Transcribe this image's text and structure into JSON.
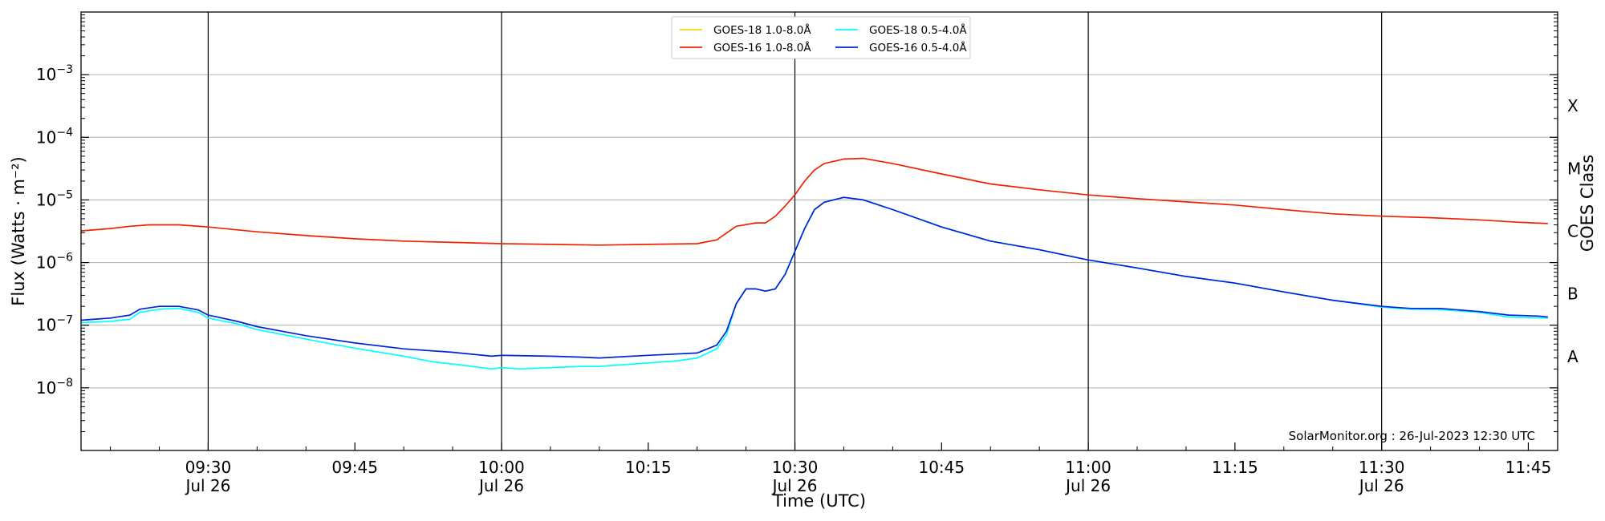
{
  "chart_data": {
    "type": "line",
    "xlabel": "Time (UTC)",
    "ylabel": "Flux (Watts · m⁻²)",
    "right_label": "GOES Class",
    "credit": "SolarMonitor.org : 26-Jul-2023 12:30 UTC",
    "y_scale": "log",
    "ylim": [
      1e-09,
      0.01
    ],
    "xlim": [
      "09:17",
      "11:48"
    ],
    "grid": "horizontal at decades 1e-8 to 1e-3",
    "legend_position": "top-center",
    "x_ticks": [
      {
        "time": "09:30",
        "label": "09:30",
        "date": "Jul 26"
      },
      {
        "time": "09:45",
        "label": "09:45",
        "date": ""
      },
      {
        "time": "10:00",
        "label": "10:00",
        "date": "Jul 26"
      },
      {
        "time": "10:15",
        "label": "10:15",
        "date": ""
      },
      {
        "time": "10:30",
        "label": "10:30",
        "date": "Jul 26"
      },
      {
        "time": "10:45",
        "label": "10:45",
        "date": ""
      },
      {
        "time": "11:00",
        "label": "11:00",
        "date": "Jul 26"
      },
      {
        "time": "11:15",
        "label": "11:15",
        "date": ""
      },
      {
        "time": "11:30",
        "label": "11:30",
        "date": "Jul 26"
      },
      {
        "time": "11:45",
        "label": "11:45",
        "date": ""
      }
    ],
    "vertical_lines": [
      "09:30",
      "10:00",
      "10:30",
      "11:00",
      "11:30"
    ],
    "y_ticks": [
      {
        "value": 1e-08,
        "exp": "-8"
      },
      {
        "value": 1e-07,
        "exp": "-7"
      },
      {
        "value": 1e-06,
        "exp": "-6"
      },
      {
        "value": 1e-05,
        "exp": "-5"
      },
      {
        "value": 0.0001,
        "exp": "-4"
      },
      {
        "value": 0.001,
        "exp": "-3"
      }
    ],
    "goes_classes": [
      {
        "label": "A",
        "value": 3.16e-08
      },
      {
        "label": "B",
        "value": 3.16e-07
      },
      {
        "label": "C",
        "value": 3.16e-06
      },
      {
        "label": "M",
        "value": 3.16e-05
      },
      {
        "label": "X",
        "value": 0.000316
      }
    ],
    "series": [
      {
        "name": "GOES-18 1.0-8.0Å",
        "color": "#ffd700",
        "points": []
      },
      {
        "name": "GOES-18 0.5-4.0Å",
        "color": "#00ffff",
        "points": [
          [
            "09:17",
            1.1e-07
          ],
          [
            "09:20",
            1.15e-07
          ],
          [
            "09:22",
            1.25e-07
          ],
          [
            "09:23",
            1.6e-07
          ],
          [
            "09:25",
            1.8e-07
          ],
          [
            "09:27",
            1.85e-07
          ],
          [
            "09:29",
            1.6e-07
          ],
          [
            "09:30",
            1.3e-07
          ],
          [
            "09:33",
            1.05e-07
          ],
          [
            "09:35",
            8.5e-08
          ],
          [
            "09:40",
            6e-08
          ],
          [
            "09:45",
            4.3e-08
          ],
          [
            "09:50",
            3.2e-08
          ],
          [
            "09:53",
            2.6e-08
          ],
          [
            "09:56",
            2.3e-08
          ],
          [
            "09:59",
            2e-08
          ],
          [
            "10:00",
            2.1e-08
          ],
          [
            "10:02",
            2e-08
          ],
          [
            "10:05",
            2.1e-08
          ],
          [
            "10:08",
            2.2e-08
          ],
          [
            "10:10",
            2.2e-08
          ],
          [
            "10:15",
            2.5e-08
          ],
          [
            "10:18",
            2.7e-08
          ],
          [
            "10:20",
            3e-08
          ],
          [
            "10:22",
            4.2e-08
          ],
          [
            "10:23",
            7e-08
          ],
          [
            "10:24",
            2.2e-07
          ],
          [
            "10:25",
            3.8e-07
          ],
          [
            "10:26",
            3.8e-07
          ],
          [
            "10:27",
            3.5e-07
          ],
          [
            "10:28",
            3.8e-07
          ],
          [
            "10:29",
            6.5e-07
          ],
          [
            "10:30",
            1.5e-06
          ],
          [
            "10:31",
            3.5e-06
          ],
          [
            "10:32",
            7e-06
          ],
          [
            "10:33",
            9.2e-06
          ],
          [
            "10:35",
            1.1e-05
          ],
          [
            "10:37",
            1e-05
          ],
          [
            "10:40",
            7e-06
          ],
          [
            "10:45",
            3.7e-06
          ],
          [
            "10:50",
            2.2e-06
          ],
          [
            "10:55",
            1.6e-06
          ],
          [
            "11:00",
            1.1e-06
          ],
          [
            "11:05",
            8.2e-07
          ],
          [
            "11:10",
            6e-07
          ],
          [
            "11:15",
            4.7e-07
          ],
          [
            "11:20",
            3.4e-07
          ],
          [
            "11:25",
            2.5e-07
          ],
          [
            "11:30",
            1.95e-07
          ],
          [
            "11:33",
            1.8e-07
          ],
          [
            "11:36",
            1.78e-07
          ],
          [
            "11:40",
            1.6e-07
          ],
          [
            "11:43",
            1.35e-07
          ],
          [
            "11:47",
            1.3e-07
          ]
        ]
      },
      {
        "name": "GOES-16 1.0-8.0Å",
        "color": "#ee2200",
        "points": [
          [
            "09:17",
            3.2e-06
          ],
          [
            "09:20",
            3.5e-06
          ],
          [
            "09:22",
            3.8e-06
          ],
          [
            "09:24",
            4e-06
          ],
          [
            "09:27",
            4e-06
          ],
          [
            "09:30",
            3.7e-06
          ],
          [
            "09:35",
            3.1e-06
          ],
          [
            "09:40",
            2.7e-06
          ],
          [
            "09:45",
            2.4e-06
          ],
          [
            "09:50",
            2.2e-06
          ],
          [
            "09:55",
            2.1e-06
          ],
          [
            "10:00",
            2e-06
          ],
          [
            "10:05",
            1.95e-06
          ],
          [
            "10:10",
            1.9e-06
          ],
          [
            "10:15",
            1.95e-06
          ],
          [
            "10:20",
            2e-06
          ],
          [
            "10:22",
            2.3e-06
          ],
          [
            "10:24",
            3.8e-06
          ],
          [
            "10:26",
            4.3e-06
          ],
          [
            "10:27",
            4.3e-06
          ],
          [
            "10:28",
            5.5e-06
          ],
          [
            "10:29",
            8e-06
          ],
          [
            "10:30",
            1.2e-05
          ],
          [
            "10:31",
            2e-05
          ],
          [
            "10:32",
            3e-05
          ],
          [
            "10:33",
            3.8e-05
          ],
          [
            "10:35",
            4.5e-05
          ],
          [
            "10:37",
            4.6e-05
          ],
          [
            "10:40",
            3.8e-05
          ],
          [
            "10:45",
            2.6e-05
          ],
          [
            "10:50",
            1.8e-05
          ],
          [
            "10:55",
            1.45e-05
          ],
          [
            "11:00",
            1.2e-05
          ],
          [
            "11:05",
            1.05e-05
          ],
          [
            "11:10",
            9.3e-06
          ],
          [
            "11:15",
            8.3e-06
          ],
          [
            "11:20",
            7e-06
          ],
          [
            "11:25",
            6e-06
          ],
          [
            "11:30",
            5.5e-06
          ],
          [
            "11:35",
            5.2e-06
          ],
          [
            "11:40",
            4.8e-06
          ],
          [
            "11:44",
            4.4e-06
          ],
          [
            "11:47",
            4.2e-06
          ]
        ]
      },
      {
        "name": "GOES-16 0.5-4.0Å",
        "color": "#0022dd",
        "points": [
          [
            "09:17",
            1.2e-07
          ],
          [
            "09:20",
            1.3e-07
          ],
          [
            "09:22",
            1.45e-07
          ],
          [
            "09:23",
            1.8e-07
          ],
          [
            "09:25",
            2e-07
          ],
          [
            "09:27",
            2e-07
          ],
          [
            "09:29",
            1.75e-07
          ],
          [
            "09:30",
            1.45e-07
          ],
          [
            "09:33",
            1.15e-07
          ],
          [
            "09:35",
            9.5e-08
          ],
          [
            "09:40",
            6.8e-08
          ],
          [
            "09:45",
            5.2e-08
          ],
          [
            "09:50",
            4.2e-08
          ],
          [
            "09:55",
            3.7e-08
          ],
          [
            "09:59",
            3.2e-08
          ],
          [
            "10:00",
            3.3e-08
          ],
          [
            "10:05",
            3.2e-08
          ],
          [
            "10:08",
            3.1e-08
          ],
          [
            "10:10",
            3e-08
          ],
          [
            "10:15",
            3.3e-08
          ],
          [
            "10:20",
            3.6e-08
          ],
          [
            "10:22",
            4.8e-08
          ],
          [
            "10:23",
            8e-08
          ],
          [
            "10:24",
            2.2e-07
          ],
          [
            "10:25",
            3.8e-07
          ],
          [
            "10:26",
            3.8e-07
          ],
          [
            "10:27",
            3.5e-07
          ],
          [
            "10:28",
            3.8e-07
          ],
          [
            "10:29",
            6.5e-07
          ],
          [
            "10:30",
            1.5e-06
          ],
          [
            "10:31",
            3.5e-06
          ],
          [
            "10:32",
            7e-06
          ],
          [
            "10:33",
            9.2e-06
          ],
          [
            "10:35",
            1.1e-05
          ],
          [
            "10:37",
            1e-05
          ],
          [
            "10:40",
            7e-06
          ],
          [
            "10:45",
            3.7e-06
          ],
          [
            "10:50",
            2.2e-06
          ],
          [
            "10:55",
            1.6e-06
          ],
          [
            "11:00",
            1.1e-06
          ],
          [
            "11:05",
            8.2e-07
          ],
          [
            "11:10",
            6e-07
          ],
          [
            "11:15",
            4.7e-07
          ],
          [
            "11:20",
            3.4e-07
          ],
          [
            "11:25",
            2.5e-07
          ],
          [
            "11:30",
            2e-07
          ],
          [
            "11:33",
            1.85e-07
          ],
          [
            "11:36",
            1.85e-07
          ],
          [
            "11:40",
            1.65e-07
          ],
          [
            "11:43",
            1.45e-07
          ],
          [
            "11:46",
            1.4e-07
          ],
          [
            "11:47",
            1.35e-07
          ]
        ]
      }
    ]
  }
}
